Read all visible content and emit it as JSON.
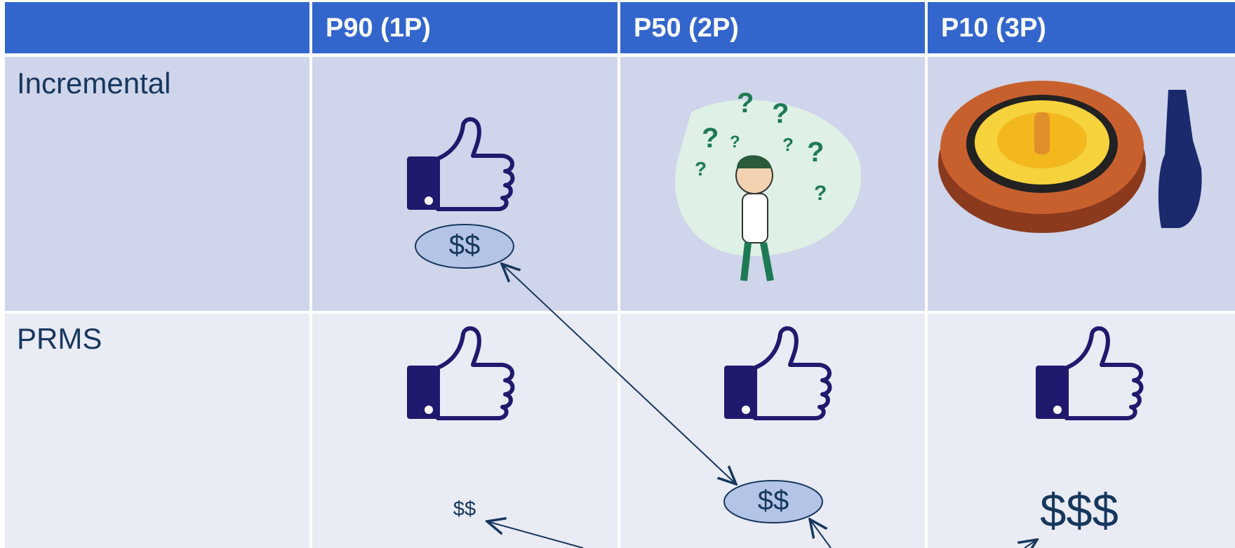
{
  "table": {
    "header": [
      "P90 (1P)",
      "P50 (2P)",
      "P10 (3P)"
    ],
    "rows": [
      {
        "label": "Incremental"
      },
      {
        "label": "PRMS"
      }
    ]
  },
  "tags": {
    "incremental_p90": "$$",
    "prms_p90": "$$",
    "prms_p50": "$$",
    "prms_p10": "$$$"
  }
}
